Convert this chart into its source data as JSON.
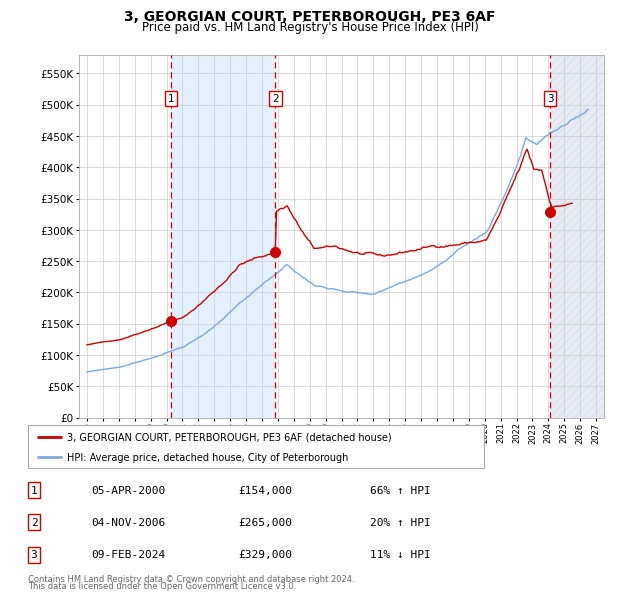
{
  "title": "3, GEORGIAN COURT, PETERBOROUGH, PE3 6AF",
  "subtitle": "Price paid vs. HM Land Registry's House Price Index (HPI)",
  "legend_line1": "3, GEORGIAN COURT, PETERBOROUGH, PE3 6AF (detached house)",
  "legend_line2": "HPI: Average price, detached house, City of Peterborough",
  "footer1": "Contains HM Land Registry data © Crown copyright and database right 2024.",
  "footer2": "This data is licensed under the Open Government Licence v3.0.",
  "table": [
    {
      "num": 1,
      "date": "05-APR-2000",
      "price": "£154,000",
      "change": "66% ↑ HPI"
    },
    {
      "num": 2,
      "date": "04-NOV-2006",
      "price": "£265,000",
      "change": "20% ↑ HPI"
    },
    {
      "num": 3,
      "date": "09-FEB-2024",
      "price": "£329,000",
      "change": "11% ↓ HPI"
    }
  ],
  "sale1_year": 2000.27,
  "sale2_year": 2006.84,
  "sale3_year": 2024.11,
  "hpi_color": "#7aaadd",
  "price_color": "#cc0000",
  "shaded_bg_color": "#ddeeff",
  "ylim_max": 580000,
  "yticks": [
    0,
    50000,
    100000,
    150000,
    200000,
    250000,
    300000,
    350000,
    400000,
    450000,
    500000,
    550000
  ],
  "xlim_start": 1994.5,
  "xlim_end": 2027.5
}
